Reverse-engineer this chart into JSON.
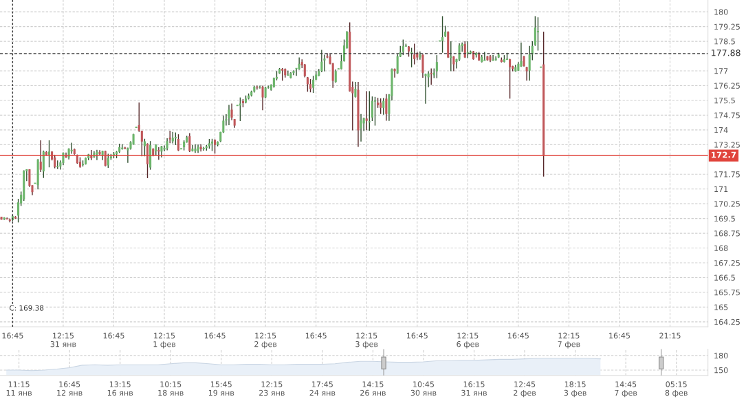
{
  "chart_data": [
    {
      "type": "candlestick",
      "categories": [
        null,
        null,
        null,
        null,
        "16:45",
        null,
        null,
        null,
        null,
        null,
        null,
        null,
        null,
        null,
        null,
        null,
        null,
        null,
        null,
        null,
        null,
        null,
        "12:15\n31 янв",
        null,
        null,
        null,
        null,
        null,
        null,
        null,
        null,
        null,
        null,
        null,
        null,
        null,
        null,
        null,
        null,
        null,
        "16:45",
        null,
        null,
        null,
        null,
        null,
        null,
        null,
        null,
        null,
        null,
        null,
        null,
        null,
        null,
        null,
        null,
        null,
        "12:15\n1 фев",
        null,
        null,
        null,
        null,
        null,
        null,
        null,
        null,
        null,
        null,
        null,
        null,
        null,
        null,
        null,
        null,
        null,
        "16:45",
        null,
        null,
        null,
        null,
        null,
        null,
        null,
        null,
        null,
        null,
        null,
        null,
        null,
        null,
        null,
        null,
        null,
        "12:15\n2 фев",
        null,
        null,
        null,
        null,
        null,
        null,
        null,
        null,
        null,
        null,
        null,
        null,
        null,
        null,
        null,
        null,
        null,
        "16:45",
        null,
        null,
        null,
        null,
        null,
        null,
        null,
        null,
        null,
        null,
        null,
        null,
        null,
        null,
        null,
        null,
        null,
        "12:15\n3 фев",
        null,
        null,
        null,
        null,
        null,
        null,
        null,
        null,
        null,
        null,
        null,
        null,
        null,
        null,
        null,
        null,
        null,
        "16:45",
        null,
        null,
        null,
        null,
        null,
        null,
        null,
        null,
        null,
        null,
        null,
        null,
        null,
        null,
        null,
        null,
        null,
        "12:15\n6 фев",
        null,
        null,
        null,
        null,
        null,
        null,
        null,
        null,
        null,
        null,
        null,
        null,
        null,
        null,
        null,
        null,
        null,
        "16:45",
        null,
        null,
        null,
        null,
        null,
        null,
        null,
        null,
        null,
        null,
        null,
        null,
        null,
        null,
        null,
        null,
        null,
        "12:15\n7 фев",
        null,
        null,
        null,
        null,
        null,
        null,
        null,
        null,
        null,
        null,
        null,
        null,
        null,
        null,
        null,
        null,
        null,
        "16:45",
        null,
        null,
        null,
        null,
        null,
        null,
        null,
        null,
        null,
        null,
        null,
        null,
        null,
        null,
        null,
        null,
        null,
        "21:15",
        null,
        null,
        null,
        null,
        null,
        null,
        null,
        null,
        null,
        null,
        null,
        null,
        null
      ],
      "ohlc": [
        [
          169.59,
          169.59,
          169.44,
          169.44
        ],
        [
          169.45,
          169.57,
          169.43,
          169.55
        ],
        [
          169.5,
          169.55,
          169.45,
          169.48
        ],
        [
          169.45,
          169.5,
          169.3,
          169.38
        ],
        [
          169.42,
          169.67,
          169.36,
          169.62
        ],
        [
          169.59,
          169.62,
          169.48,
          169.5
        ],
        [
          169.65,
          170.5,
          169.3,
          170.32
        ],
        [
          170.27,
          170.87,
          170.14,
          170.71
        ],
        [
          170.47,
          171.95,
          170.4,
          171.93
        ],
        [
          171.9,
          172.0,
          171.4,
          172.0
        ],
        [
          172.0,
          172.0,
          171.1,
          171.16
        ],
        [
          171.19,
          171.19,
          170.68,
          170.84
        ],
        [
          171.29,
          171.29,
          171.29,
          171.29
        ],
        [
          171.19,
          172.52,
          170.98,
          172.5
        ],
        [
          172.39,
          173.47,
          171.86,
          171.98
        ],
        [
          171.89,
          172.95,
          171.56,
          172.9
        ],
        [
          172.88,
          172.92,
          172.7,
          172.74
        ],
        [
          172.74,
          173.47,
          172.1,
          172.9
        ],
        [
          172.9,
          172.92,
          172.45,
          172.5
        ],
        [
          172.6,
          172.74,
          172.05,
          172.12
        ],
        [
          172.14,
          172.45,
          172.01,
          172.14
        ],
        [
          172.14,
          172.45,
          171.99,
          172.35
        ],
        [
          172.32,
          172.86,
          172.21,
          172.84
        ],
        [
          172.72,
          172.85,
          172.58,
          172.6
        ],
        [
          172.6,
          173.07,
          172.5,
          173.05
        ],
        [
          172.91,
          173.35,
          172.79,
          172.99
        ],
        [
          173.02,
          173.05,
          172.75,
          172.77
        ],
        [
          172.72,
          172.75,
          172.28,
          172.31
        ],
        [
          172.38,
          172.61,
          172.08,
          172.12
        ],
        [
          172.21,
          172.45,
          172.14,
          172.28
        ],
        [
          172.26,
          172.6,
          172.24,
          172.58
        ],
        [
          172.56,
          172.78,
          172.47,
          172.76
        ],
        [
          172.72,
          172.98,
          172.47,
          172.56
        ],
        [
          172.62,
          172.92,
          172.58,
          172.82
        ],
        [
          172.76,
          172.99,
          172.47,
          172.89
        ],
        [
          172.88,
          172.97,
          172.74,
          172.76
        ],
        [
          172.71,
          172.95,
          172.47,
          172.93
        ],
        [
          172.93,
          172.95,
          172.15,
          172.18
        ],
        [
          172.2,
          172.79,
          172.07,
          172.58
        ],
        [
          172.56,
          172.78,
          172.48,
          172.65
        ],
        [
          172.7,
          172.88,
          172.56,
          172.79
        ],
        [
          172.76,
          172.93,
          172.56,
          172.89
        ],
        [
          172.89,
          173.3,
          172.83,
          173.12
        ],
        [
          173.02,
          173.28,
          173.0,
          173.1
        ],
        [
          173.11,
          173.14,
          173.02,
          173.05
        ],
        [
          172.96,
          173.1,
          172.33,
          173.07
        ],
        [
          173.05,
          173.43,
          173.0,
          173.38
        ],
        [
          173.26,
          173.8,
          173.24,
          173.78
        ],
        [
          174.13,
          174.15,
          174.11,
          174.13
        ],
        [
          174.24,
          175.39,
          173.9,
          173.96
        ],
        [
          173.96,
          173.96,
          172.66,
          173.41
        ],
        [
          173.18,
          173.55,
          172.66,
          173.42
        ],
        [
          173.3,
          173.32,
          171.55,
          172.26
        ],
        [
          172.09,
          173.43,
          171.98,
          173.23
        ],
        [
          173.05,
          173.07,
          172.66,
          172.7
        ],
        [
          172.92,
          173.27,
          172.7,
          173.25
        ],
        [
          172.98,
          173.12,
          172.48,
          172.9
        ],
        [
          172.9,
          173.19,
          172.61,
          173.17
        ],
        [
          173.0,
          173.21,
          172.91,
          173.09
        ],
        [
          173.06,
          173.58,
          172.96,
          173.43
        ],
        [
          173.61,
          173.96,
          173.32,
          173.52
        ],
        [
          173.42,
          173.9,
          173.31,
          173.6
        ],
        [
          173.57,
          173.87,
          173.23,
          173.64
        ],
        [
          173.54,
          173.78,
          172.93,
          172.96
        ],
        [
          173.04,
          173.06,
          173.02,
          173.04
        ],
        [
          173.12,
          173.47,
          172.96,
          173.4
        ],
        [
          173.37,
          173.7,
          173.35,
          173.63
        ],
        [
          173.68,
          173.84,
          172.88,
          172.92
        ],
        [
          172.92,
          173.23,
          172.9,
          173.05
        ],
        [
          172.91,
          173.27,
          172.83,
          173.05
        ],
        [
          172.95,
          173.26,
          172.83,
          173.14
        ],
        [
          173.14,
          173.28,
          172.9,
          173.02
        ],
        [
          173.02,
          173.14,
          172.95,
          173.09
        ],
        [
          173.07,
          173.23,
          172.95,
          173.17
        ],
        [
          173.17,
          173.54,
          173.05,
          173.32
        ],
        [
          173.31,
          173.55,
          172.93,
          173.41
        ],
        [
          173.5,
          173.52,
          172.8,
          173.24
        ],
        [
          173.24,
          173.42,
          173.17,
          173.4
        ],
        [
          173.42,
          173.9,
          173.38,
          173.9
        ],
        [
          173.88,
          174.73,
          173.85,
          174.47
        ],
        [
          174.47,
          174.8,
          174.22,
          174.55
        ],
        [
          174.58,
          175.27,
          174.24,
          175.03
        ],
        [
          175.03,
          175.34,
          174.49,
          174.63
        ],
        [
          174.55,
          174.55,
          174.11,
          174.22
        ],
        [
          175.24,
          175.26,
          175.22,
          175.24
        ],
        [
          175.24,
          175.65,
          174.45,
          175.34
        ],
        [
          175.47,
          175.57,
          175.15,
          175.36
        ],
        [
          175.39,
          175.75,
          175.35,
          175.59
        ],
        [
          175.59,
          175.85,
          175.55,
          175.75
        ],
        [
          175.75,
          176.0,
          175.7,
          175.95
        ],
        [
          175.95,
          176.25,
          175.9,
          176.2
        ],
        [
          176.2,
          176.25,
          176.05,
          176.15
        ],
        [
          176.15,
          176.25,
          176.1,
          176.2
        ],
        [
          176.2,
          176.25,
          175.0,
          175.65
        ],
        [
          175.65,
          176.2,
          175.6,
          176.15
        ],
        [
          176.15,
          176.25,
          176.1,
          176.2
        ],
        [
          176.03,
          176.32,
          176.0,
          176.29
        ],
        [
          176.17,
          176.66,
          176.15,
          176.64
        ],
        [
          176.6,
          176.99,
          176.52,
          176.69
        ],
        [
          176.87,
          177.14,
          176.85,
          177.1
        ],
        [
          177.1,
          177.14,
          176.5,
          177.01
        ],
        [
          177.1,
          177.12,
          176.66,
          176.78
        ],
        [
          176.78,
          177.01,
          176.76,
          176.78
        ],
        [
          176.64,
          176.93,
          176.62,
          176.89
        ],
        [
          176.89,
          177.03,
          176.78,
          176.99
        ],
        [
          177.08,
          177.14,
          176.75,
          177.12
        ],
        [
          177.08,
          177.68,
          177.05,
          177.36
        ],
        [
          177.45,
          177.59,
          177.14,
          177.28
        ],
        [
          177.33,
          177.35,
          176.67,
          176.73
        ],
        [
          176.67,
          176.69,
          175.94,
          176.32
        ],
        [
          176.33,
          176.58,
          175.91,
          176.08
        ],
        [
          176.14,
          176.75,
          175.88,
          176.55
        ],
        [
          176.55,
          177.0,
          176.53,
          176.81
        ],
        [
          176.75,
          177.1,
          176.73,
          176.99
        ],
        [
          176.99,
          178.07,
          176.93,
          177.47
        ],
        [
          177.53,
          177.82,
          176.97,
          177.62
        ],
        [
          177.74,
          177.89,
          177.65,
          177.68
        ],
        [
          177.72,
          177.86,
          177.33,
          177.36
        ],
        [
          177.38,
          177.4,
          176.14,
          176.49
        ],
        [
          176.43,
          177.07,
          176.4,
          176.99
        ],
        [
          177.1,
          177.12,
          177.08,
          177.1
        ],
        [
          177.09,
          177.82,
          177.07,
          177.49
        ],
        [
          177.49,
          178.59,
          177.47,
          178.29
        ],
        [
          178.15,
          179.02,
          178.13,
          178.99
        ],
        [
          178.99,
          179.46,
          175.94,
          175.96
        ],
        [
          176.19,
          176.46,
          173.98,
          175.86
        ],
        [
          175.68,
          176.44,
          175.65,
          176.09
        ],
        [
          176.04,
          176.44,
          173.14,
          173.98
        ],
        [
          174.08,
          174.81,
          173.41,
          174.48
        ],
        [
          174.33,
          174.62,
          173.94,
          174.6
        ],
        [
          174.58,
          175.97,
          173.99,
          174.46
        ],
        [
          174.41,
          175.97,
          173.96,
          174.41
        ],
        [
          174.63,
          175.7,
          174.45,
          175.47
        ],
        [
          175.44,
          175.68,
          174.22,
          175.5
        ],
        [
          175.38,
          175.63,
          175.12,
          175.26
        ],
        [
          175.39,
          175.6,
          174.81,
          175.12
        ],
        [
          175.12,
          175.62,
          174.77,
          175.47
        ],
        [
          175.59,
          175.82,
          174.47,
          174.81
        ],
        [
          174.81,
          175.82,
          174.46,
          175.8
        ],
        [
          175.73,
          177.12,
          175.5,
          177.1
        ],
        [
          177.1,
          177.12,
          176.66,
          176.99
        ],
        [
          176.87,
          177.85,
          176.85,
          177.74
        ],
        [
          177.72,
          178.27,
          177.7,
          177.94
        ],
        [
          177.97,
          178.59,
          177.8,
          178.25
        ],
        [
          178.26,
          178.38,
          178.24,
          178.26
        ],
        [
          178.24,
          178.26,
          177.72,
          177.99
        ],
        [
          177.92,
          178.17,
          177.18,
          177.92
        ],
        [
          177.83,
          178.38,
          177.33,
          177.6
        ],
        [
          177.89,
          177.96,
          177.54,
          177.68
        ],
        [
          177.68,
          177.99,
          177.57,
          177.83
        ],
        [
          177.82,
          177.84,
          176.65,
          176.9
        ],
        [
          176.73,
          176.86,
          175.33,
          176.84
        ],
        [
          176.67,
          176.98,
          176.17,
          176.87
        ],
        [
          176.89,
          177.12,
          176.29,
          176.83
        ],
        [
          176.78,
          177.12,
          176.63,
          176.91
        ],
        [
          176.98,
          177.8,
          176.63,
          177.45
        ],
        [
          178.52,
          178.52,
          178.52,
          178.52
        ],
        [
          178.52,
          179.78,
          177.92,
          178.71
        ],
        [
          178.75,
          179.29,
          178.72,
          178.99
        ],
        [
          178.99,
          179.01,
          177.66,
          177.68
        ],
        [
          177.66,
          178.5,
          176.98,
          177.74
        ],
        [
          177.73,
          177.75,
          176.98,
          177.33
        ],
        [
          177.45,
          177.61,
          177.12,
          177.59
        ],
        [
          177.57,
          178.4,
          177.5,
          178.29
        ],
        [
          178.26,
          178.44,
          177.97,
          178.37
        ],
        [
          178.36,
          178.5,
          177.66,
          177.68
        ],
        [
          177.87,
          178.5,
          177.66,
          177.94
        ],
        [
          177.88,
          178.03,
          177.85,
          177.99
        ],
        [
          177.99,
          178.01,
          177.57,
          177.59
        ],
        [
          177.8,
          177.95,
          177.68,
          177.9
        ],
        [
          177.89,
          177.96,
          177.51,
          177.53
        ],
        [
          177.45,
          177.8,
          177.43,
          177.71
        ],
        [
          177.54,
          177.96,
          177.52,
          177.54
        ],
        [
          177.74,
          177.76,
          177.52,
          177.54
        ],
        [
          177.74,
          177.8,
          177.45,
          177.53
        ],
        [
          177.54,
          177.8,
          177.52,
          177.54
        ],
        [
          177.54,
          177.74,
          177.52,
          177.63
        ],
        [
          177.68,
          177.92,
          177.66,
          177.83
        ],
        [
          177.57,
          177.68,
          177.43,
          177.45
        ],
        [
          177.45,
          177.8,
          177.43,
          177.59
        ],
        [
          177.59,
          177.92,
          177.57,
          177.59
        ],
        [
          177.59,
          177.61,
          175.59,
          177.19
        ],
        [
          177.24,
          177.26,
          176.98,
          177.1
        ],
        [
          176.98,
          177.31,
          176.96,
          177.19
        ],
        [
          177.01,
          177.45,
          176.99,
          177.36
        ],
        [
          177.22,
          178.44,
          177.2,
          177.49
        ],
        [
          177.74,
          177.76,
          177.22,
          177.24
        ],
        [
          177.19,
          177.21,
          176.5,
          176.98
        ],
        [
          177.01,
          178.27,
          176.5,
          177.83
        ],
        [
          177.83,
          178.5,
          177.54,
          178.27
        ],
        [
          178.32,
          179.78,
          178.27,
          179.2
        ],
        [
          178.99,
          179.72,
          178.03,
          178.99
        ],
        [
          177.19,
          177.21,
          177.17,
          177.19
        ],
        [
          177.33,
          178.99,
          171.63,
          172.7
        ],
        null,
        null,
        null,
        null,
        null,
        null,
        null,
        null,
        null,
        null,
        null,
        null,
        null,
        null,
        null,
        null,
        null,
        null,
        null,
        null,
        null,
        null,
        null,
        null,
        null,
        null,
        null,
        null,
        null,
        null,
        null,
        null,
        null,
        null,
        null,
        null,
        null,
        null,
        null,
        null,
        null,
        null,
        null,
        null,
        null,
        null,
        null,
        null,
        null,
        null,
        null,
        null,
        null,
        null,
        null,
        null,
        null,
        null
      ],
      "colors": [
        "#c0575a",
        "#6cb56b",
        "#c0575a",
        "#c0575a",
        "#6cb56b",
        "#c0575a",
        "#6cb56b",
        "#6cb56b",
        "#6cb56b",
        "#6cb56b",
        "#c0575a",
        "#c0575a",
        "#6cb56b",
        "#6cb56b",
        "#c0575a",
        "#6cb56b",
        "#c0575a",
        "#6cb56b",
        "#c0575a",
        "#c0575a",
        "#6cb56b",
        "#6cb56b",
        "#6cb56b",
        "#c0575a",
        "#6cb56b",
        "#6cb56b",
        "#c0575a",
        "#c0575a",
        "#c0575a",
        "#6cb56b",
        "#6cb56b",
        "#6cb56b",
        "#c0575a",
        "#6cb56b",
        "#6cb56b",
        "#c0575a",
        "#6cb56b",
        "#c0575a",
        "#6cb56b",
        "#6cb56b",
        "#6cb56b",
        "#6cb56b",
        "#6cb56b",
        "#6cb56b",
        "#c0575a",
        "#6cb56b",
        "#6cb56b",
        "#6cb56b",
        "#6cb56b",
        "#c0575a",
        "#c0575a",
        "#6cb56b",
        "#c0575a",
        "#6cb56b",
        "#c0575a",
        "#6cb56b",
        "#c0575a",
        "#6cb56b",
        "#6cb56b",
        "#6cb56b",
        "#c0575a",
        "#6cb56b",
        "#6cb56b",
        "#c0575a",
        "#6cb56b",
        "#6cb56b",
        "#6cb56b",
        "#c0575a",
        "#6cb56b",
        "#6cb56b",
        "#6cb56b",
        "#c0575a",
        "#6cb56b",
        "#6cb56b",
        "#6cb56b",
        "#6cb56b",
        "#c0575a",
        "#6cb56b",
        "#6cb56b",
        "#6cb56b",
        "#6cb56b",
        "#6cb56b",
        "#c0575a",
        "#c0575a",
        "#6cb56b",
        "#6cb56b",
        "#c0575a",
        "#6cb56b",
        "#6cb56b",
        "#6cb56b",
        "#6cb56b",
        "#c0575a",
        "#6cb56b",
        "#c0575a",
        "#6cb56b",
        "#6cb56b",
        "#6cb56b",
        "#6cb56b",
        "#6cb56b",
        "#6cb56b",
        "#c0575a",
        "#c0575a",
        "#6cb56b",
        "#6cb56b",
        "#6cb56b",
        "#6cb56b",
        "#6cb56b",
        "#c0575a",
        "#c0575a",
        "#c0575a",
        "#c0575a",
        "#6cb56b",
        "#6cb56b",
        "#6cb56b",
        "#6cb56b",
        "#6cb56b",
        "#c0575a",
        "#c0575a",
        "#c0575a",
        "#6cb56b",
        "#6cb56b",
        "#6cb56b",
        "#6cb56b",
        "#6cb56b",
        "#c0575a",
        "#c0575a",
        "#6cb56b",
        "#c0575a",
        "#6cb56b",
        "#6cb56b",
        "#c0575a",
        "#6cb56b",
        "#6cb56b",
        "#6cb56b",
        "#c0575a",
        "#c0575a",
        "#6cb56b",
        "#c0575a",
        "#6cb56b",
        "#6cb56b",
        "#c0575a",
        "#6cb56b",
        "#6cb56b",
        "#6cb56b",
        "#6cb56b",
        "#c0575a",
        "#6cb56b",
        "#c0575a",
        "#c0575a",
        "#6cb56b",
        "#c0575a",
        "#6cb56b",
        "#6cb56b",
        "#c0575a",
        "#6cb56b",
        "#6cb56b",
        "#6cb56b",
        "#6cb56b",
        "#6cb56b",
        "#c0575a",
        "#6cb56b",
        "#c0575a",
        "#6cb56b",
        "#6cb56b",
        "#6cb56b",
        "#c0575a",
        "#6cb56b",
        "#6cb56b",
        "#c0575a",
        "#6cb56b",
        "#c0575a",
        "#6cb56b",
        "#6cb56b",
        "#c0575a",
        "#c0575a",
        "#6cb56b",
        "#6cb56b",
        "#6cb56b",
        "#c0575a",
        "#6cb56b",
        "#6cb56b",
        "#c0575a",
        "#c0575a",
        "#6cb56b",
        "#6cb56b",
        "#6cb56b",
        "#c0575a",
        "#c0575a",
        "#6cb56b",
        "#6cb56b",
        "#6cb56b",
        "#6cb56b",
        "#6cb56b",
        "#c0575a",
        null,
        null,
        null,
        null,
        null,
        null,
        null,
        null,
        null,
        null,
        null,
        null,
        null,
        null,
        null,
        null,
        null,
        null,
        null,
        null,
        null,
        null,
        null,
        null,
        null,
        null,
        null,
        null,
        null,
        null,
        null,
        null,
        null,
        null,
        null,
        null,
        null,
        null,
        null,
        null,
        null,
        null,
        null,
        null,
        null,
        null,
        null,
        null,
        null,
        null,
        null,
        null,
        null,
        null,
        null,
        null,
        null,
        null
      ],
      "ylim": [
        164.0,
        180.6
      ],
      "yticks": [
        164.25,
        165,
        165.75,
        166.5,
        167.25,
        168,
        168.75,
        169.5,
        170.25,
        171,
        171.75,
        173.25,
        174,
        174.75,
        175.5,
        176.25,
        177,
        178.5,
        179.25,
        180
      ],
      "grid": true,
      "ref_lines": [
        {
          "axis": "y",
          "value": 177.88,
          "label": "177.88",
          "color": "#333333",
          "line_style": "dashed"
        },
        {
          "axis": "y",
          "value": 172.7,
          "label": "172.7",
          "color": "#e0443c",
          "line_style": "solid"
        },
        {
          "axis": "x",
          "value": "16:45",
          "color": "#333333",
          "line_style": "dotted"
        }
      ],
      "annotations": [
        "C: 169.38"
      ]
    },
    {
      "type": "area",
      "categories": [
        null,
        "11:15\n11 янв",
        null,
        null,
        null,
        "16:45\n12 янв",
        null,
        null,
        null,
        "13:15\n16 янв",
        null,
        null,
        null,
        "10:15\n18 янв",
        null,
        null,
        null,
        "15:45\n19 янв",
        null,
        null,
        null,
        "12:15\n23 янв",
        null,
        null,
        null,
        "17:45\n24 янв",
        null,
        null,
        null,
        "14:15\n26 янв",
        null,
        null,
        null,
        "10:45\n30 янв",
        null,
        null,
        null,
        "16:15\n31 янв",
        null,
        null,
        null,
        "12:45\n2 фев",
        null,
        null,
        null,
        "18:15\n3 фев",
        null,
        null,
        null,
        "14:45\n7 фев",
        null,
        null,
        null,
        "05:15\n8 фев",
        null,
        null
      ],
      "series": [
        {
          "color": "#e9f0f8",
          "values": [
            150,
            150,
            149,
            150,
            152,
            155,
            160,
            161,
            160,
            161,
            161,
            161,
            161,
            163,
            165,
            165,
            163,
            161,
            161,
            162,
            162,
            161,
            161,
            162,
            162,
            162,
            163,
            166,
            168,
            168,
            167,
            166,
            166,
            167,
            169,
            169,
            170,
            170,
            171,
            172,
            172,
            173,
            174,
            174,
            174,
            174,
            174,
            173,
            null,
            null,
            null,
            null,
            null,
            null,
            null,
            null
          ]
        }
      ],
      "ylim": [
        139,
        193
      ],
      "yticks": [
        150,
        180
      ],
      "grid": true
    }
  ]
}
